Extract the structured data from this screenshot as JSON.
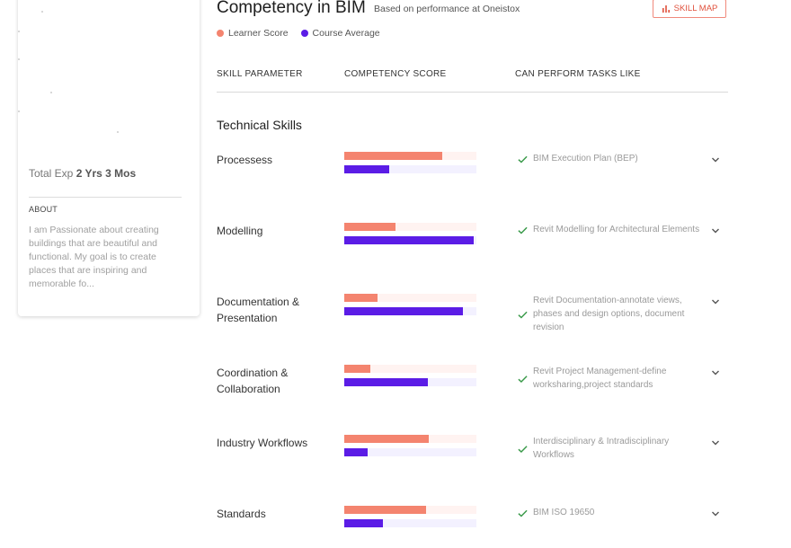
{
  "profile": {
    "exp_label": "Total Exp",
    "exp_value": "2 Yrs 3 Mos",
    "about_label": "ABOUT",
    "about_text": "I am Passionate about creating buildings that are beautiful and functional. My goal is to create places that are inspiring and memorable fo..."
  },
  "header": {
    "title": "Competency in BIM",
    "subtitle": "Based on performance at Oneistox",
    "skill_map_label": "SKILL MAP",
    "skill_map_icon": "bar-chart-icon"
  },
  "legend": {
    "learner": "Learner Score",
    "average": "Course Average",
    "learner_color": "#f4846f",
    "average_color": "#5b1ce6"
  },
  "table": {
    "col_skill": "SKILL PARAMETER",
    "col_score": "COMPETENCY SCORE",
    "col_tasks": "CAN PERFORM TASKS LIKE"
  },
  "section_title": "Technical Skills",
  "skills": [
    {
      "name": "Processess",
      "learner": 0.74,
      "average": 0.34,
      "task": "BIM Execution Plan (BEP)"
    },
    {
      "name": "Modelling",
      "learner": 0.39,
      "average": 0.98,
      "task": "Revit Modelling for Architectural Elements"
    },
    {
      "name": "Documentation & Presentation",
      "learner": 0.25,
      "average": 0.9,
      "task": "Revit Documentation-annotate views, phases and design options, document revision"
    },
    {
      "name": "Coordination & Collaboration",
      "learner": 0.2,
      "average": 0.63,
      "task": "Revit Project Management-define worksharing,project standards"
    },
    {
      "name": "Industry Workflows",
      "learner": 0.64,
      "average": 0.18,
      "task": "Interdisciplinary & Intradisciplinary Workflows"
    },
    {
      "name": "Standards",
      "learner": 0.62,
      "average": 0.29,
      "task": "BIM ISO 19650"
    }
  ]
}
